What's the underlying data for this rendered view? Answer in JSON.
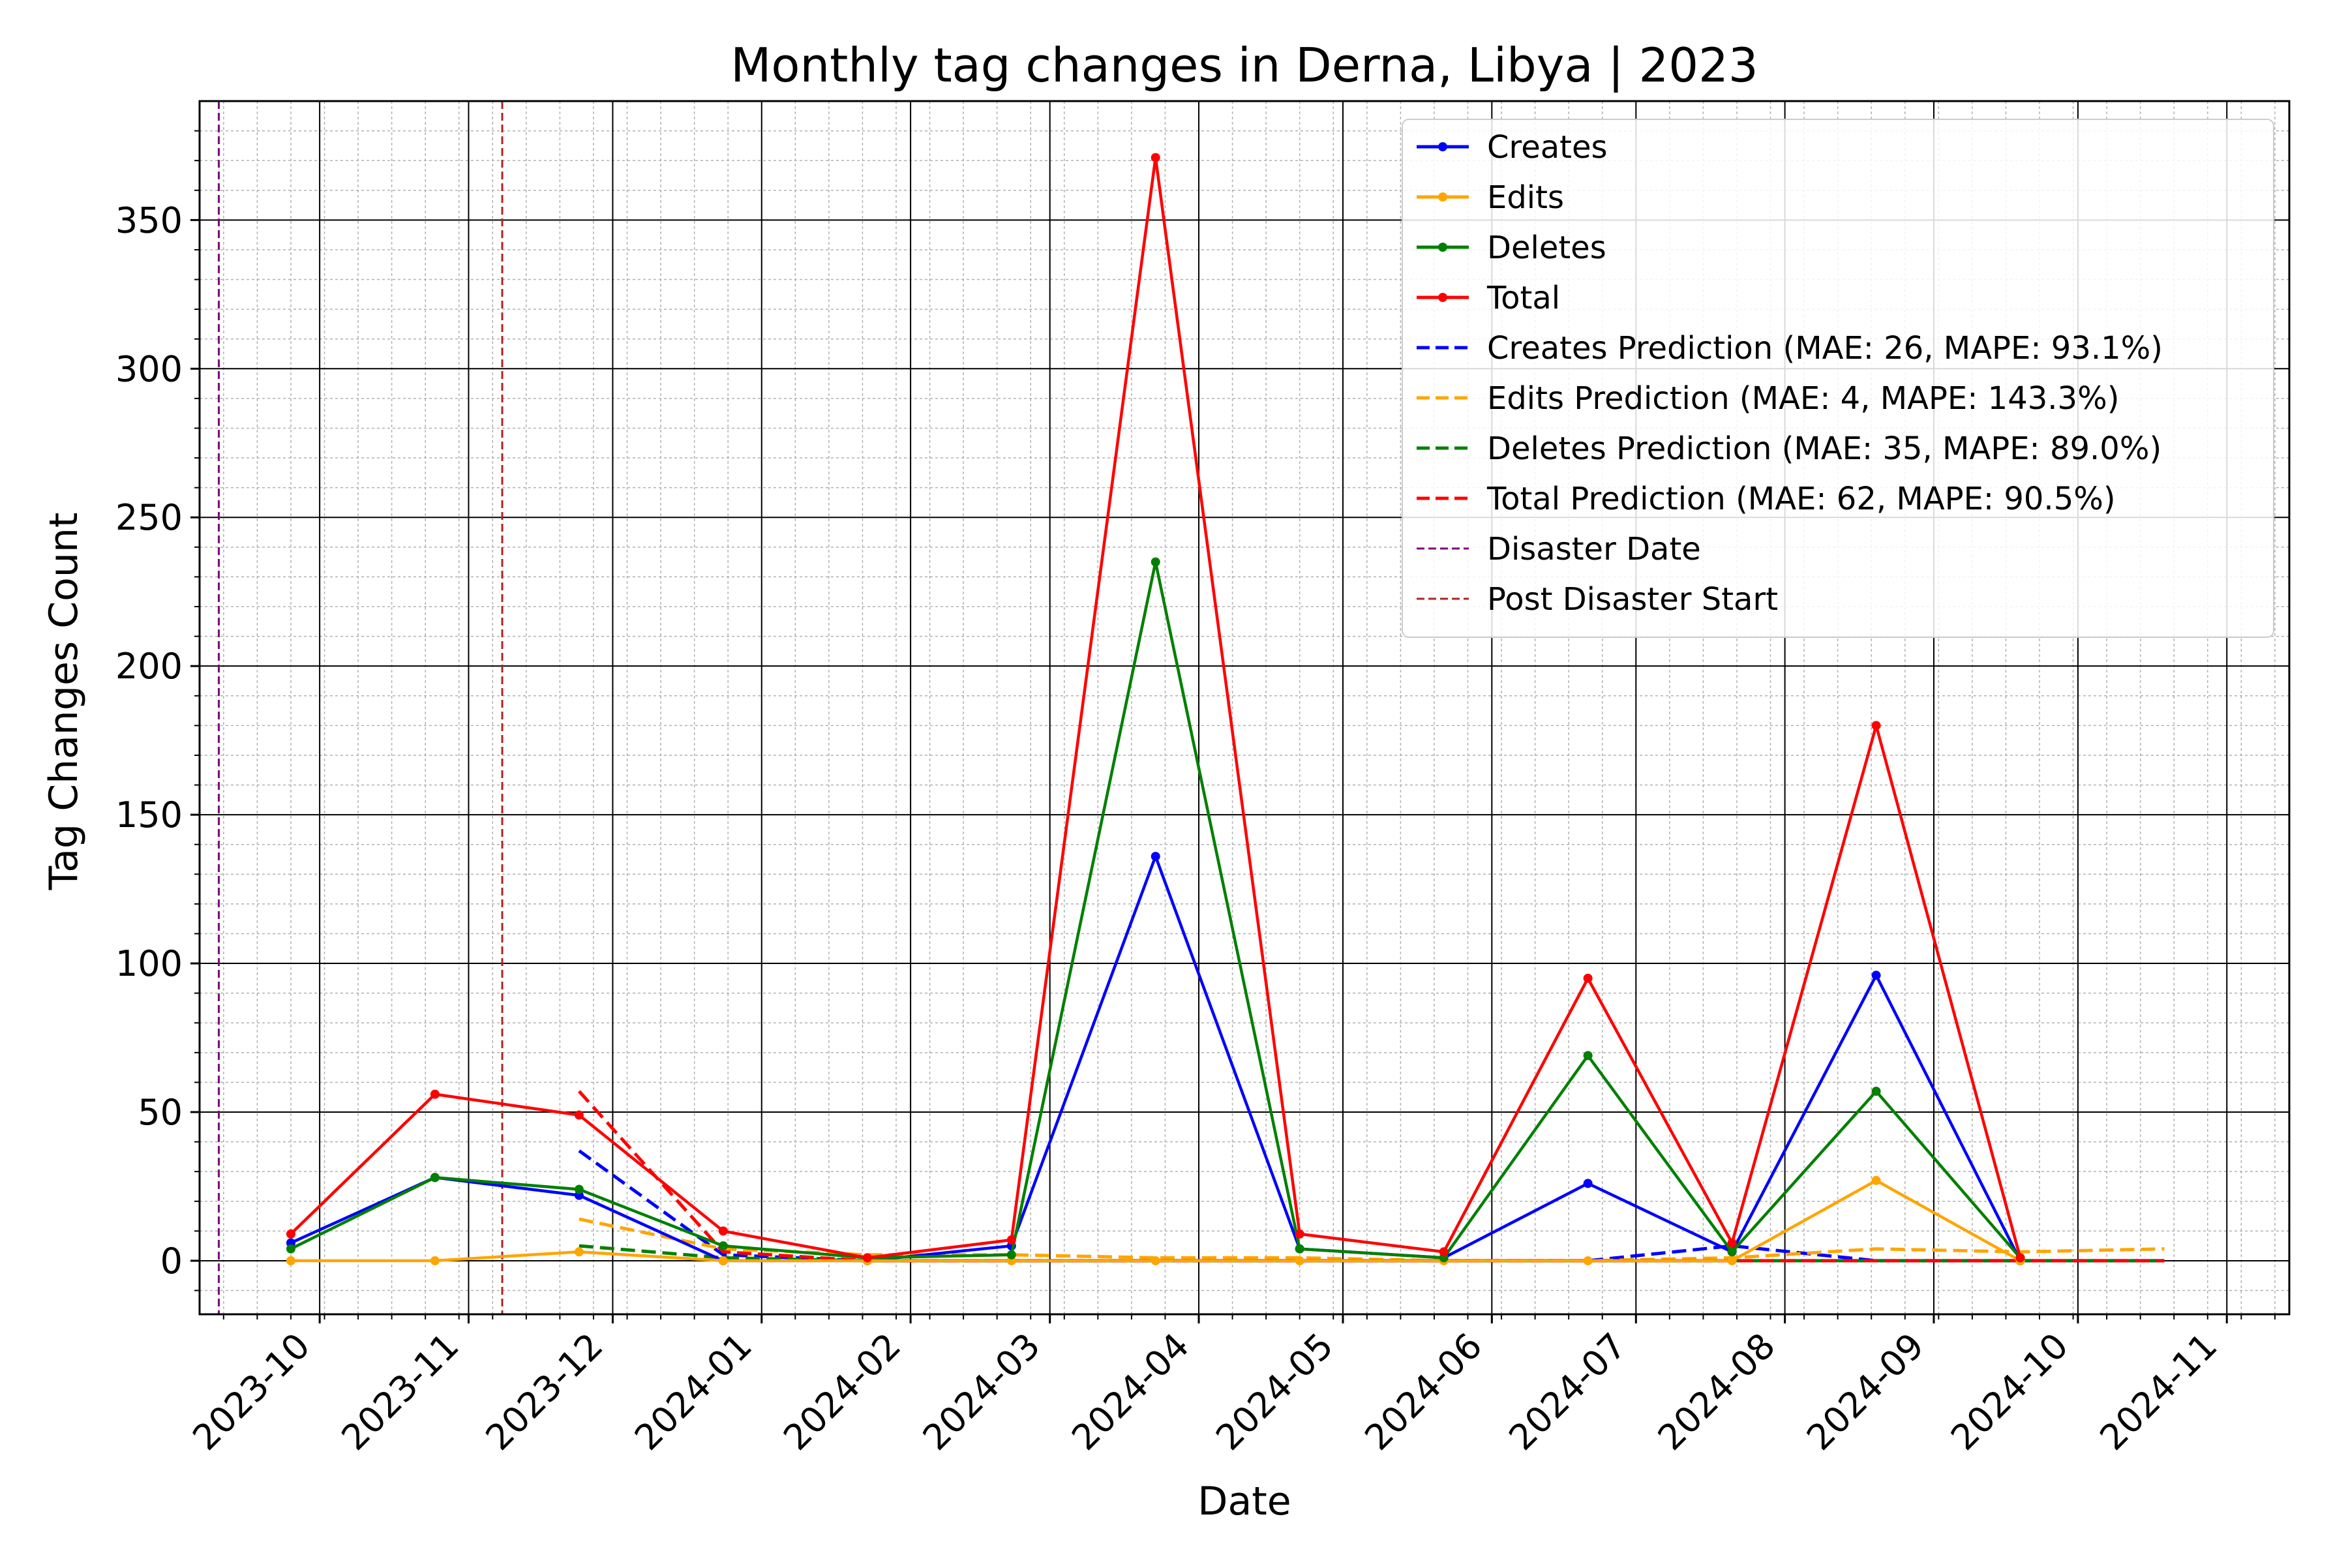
{
  "chart_data": {
    "type": "line",
    "title": "Monthly tag changes in Derna, Libya | 2023",
    "xlabel": "Date",
    "ylabel": "Tag Changes Count",
    "x_ticks": [
      "2023-10",
      "2023-11",
      "2023-12",
      "2024-01",
      "2024-02",
      "2024-03",
      "2024-04",
      "2024-05",
      "2024-06",
      "2024-07",
      "2024-08",
      "2024-09",
      "2024-10",
      "2024-11"
    ],
    "y_ticks": [
      0,
      50,
      100,
      150,
      200,
      250,
      300,
      350
    ],
    "ylim": [
      -18,
      390
    ],
    "xlim": [
      "2023-09-06",
      "2024-11-14"
    ],
    "grid": true,
    "legend_position": "top-right",
    "x": [
      "2023-09-25",
      "2023-10-25",
      "2023-11-24",
      "2023-12-24",
      "2024-01-23",
      "2024-02-22",
      "2024-03-23",
      "2024-04-22",
      "2024-05-22",
      "2024-06-21",
      "2024-07-21",
      "2024-08-20",
      "2024-09-19"
    ],
    "series": [
      {
        "name": "Creates",
        "color": "#0000ff",
        "style": "solid",
        "marker": true,
        "values": [
          6,
          28,
          22,
          0,
          0,
          5,
          136,
          4,
          1,
          26,
          3,
          96,
          0
        ]
      },
      {
        "name": "Edits",
        "color": "#ffa500",
        "style": "solid",
        "marker": true,
        "values": [
          0,
          0,
          3,
          0,
          0,
          0,
          0,
          0,
          0,
          0,
          0,
          27,
          0
        ]
      },
      {
        "name": "Deletes",
        "color": "#008000",
        "style": "solid",
        "marker": true,
        "values": [
          4,
          28,
          24,
          5,
          1,
          2,
          235,
          4,
          1,
          69,
          3,
          57,
          1
        ]
      },
      {
        "name": "Total",
        "color": "#ff0000",
        "style": "solid",
        "marker": true,
        "values": [
          9,
          56,
          49,
          10,
          1,
          7,
          371,
          9,
          3,
          95,
          6,
          180,
          1
        ]
      },
      {
        "name": "Creates Prediction (MAE: 26, MAPE: 93.1%)",
        "color": "#0000ff",
        "style": "dashed",
        "x": [
          "2023-11-24",
          "2023-12-24",
          "2024-01-23",
          "2024-02-22",
          "2024-03-23",
          "2024-04-22",
          "2024-05-22",
          "2024-06-21",
          "2024-07-21",
          "2024-08-20",
          "2024-09-19",
          "2024-10-19"
        ],
        "values": [
          37,
          2,
          0,
          0,
          0,
          0,
          0,
          0,
          5,
          0,
          0,
          0
        ]
      },
      {
        "name": "Edits Prediction (MAE: 4, MAPE: 143.3%)",
        "color": "#ffa500",
        "style": "dashed",
        "x": [
          "2023-11-24",
          "2023-12-24",
          "2024-01-23",
          "2024-02-22",
          "2024-03-23",
          "2024-04-22",
          "2024-05-22",
          "2024-06-21",
          "2024-07-21",
          "2024-08-20",
          "2024-09-19",
          "2024-10-19"
        ],
        "values": [
          14,
          4,
          2,
          2,
          1,
          1,
          0,
          0,
          1,
          4,
          3,
          4
        ]
      },
      {
        "name": "Deletes Prediction (MAE: 35, MAPE: 89.0%)",
        "color": "#008000",
        "style": "dashed",
        "x": [
          "2023-11-24",
          "2023-12-24",
          "2024-01-23",
          "2024-02-22",
          "2024-03-23",
          "2024-04-22",
          "2024-05-22",
          "2024-06-21",
          "2024-07-21",
          "2024-08-20",
          "2024-09-19",
          "2024-10-19"
        ],
        "values": [
          5,
          1,
          0,
          0,
          0,
          0,
          0,
          0,
          0,
          0,
          0,
          0
        ]
      },
      {
        "name": "Total Prediction (MAE: 62, MAPE: 90.5%)",
        "color": "#ff0000",
        "style": "dashed",
        "x": [
          "2023-11-24",
          "2023-12-24",
          "2024-01-23",
          "2024-02-22",
          "2024-03-23",
          "2024-04-22",
          "2024-05-22",
          "2024-06-21",
          "2024-07-21",
          "2024-08-20",
          "2024-09-19",
          "2024-10-19"
        ],
        "values": [
          57,
          3,
          0,
          0,
          0,
          0,
          0,
          0,
          0,
          0,
          0,
          0
        ]
      }
    ],
    "vlines": [
      {
        "name": "Disaster Date",
        "date": "2023-09-10",
        "color": "#800080",
        "style": "dashed"
      },
      {
        "name": "Post Disaster Start",
        "date": "2023-11-08",
        "color": "#b22222",
        "style": "dashed"
      }
    ]
  }
}
